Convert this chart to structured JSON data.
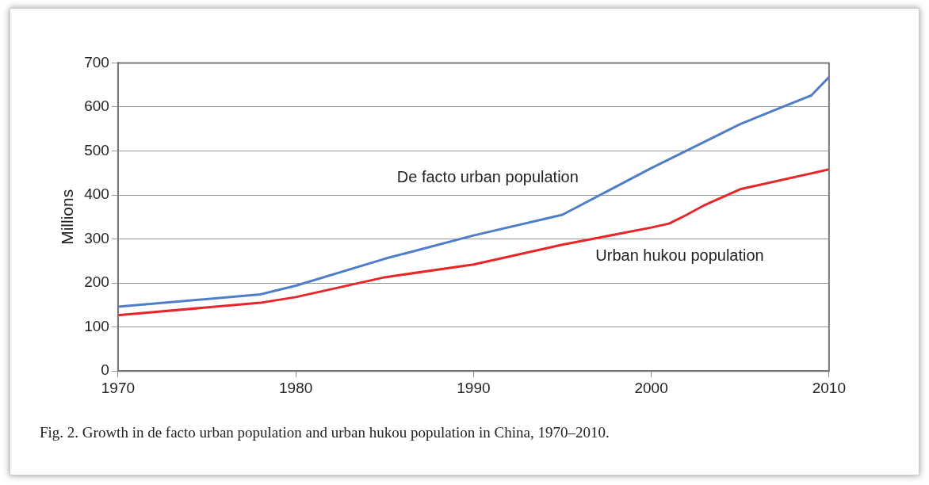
{
  "chart_data": {
    "type": "line",
    "ylabel": "Millions",
    "xlim": [
      1970,
      2010
    ],
    "xticks": [
      1970,
      1980,
      1990,
      2000,
      2010
    ],
    "ylim": [
      0,
      700
    ],
    "yticks": [
      0,
      100,
      200,
      300,
      400,
      500,
      600,
      700
    ],
    "grid": "y",
    "legend": false,
    "marker": "none",
    "line_style": "solid",
    "series": [
      {
        "name": "De facto urban population",
        "color": "#4f7ec8",
        "x": [
          1970,
          1978,
          1980,
          1985,
          1990,
          1995,
          2000,
          2003,
          2005,
          2007,
          2009,
          2010
        ],
        "values": [
          146,
          174,
          194,
          255,
          308,
          355,
          461,
          521,
          561,
          594,
          626,
          668
        ]
      },
      {
        "name": "Urban hukou population",
        "color": "#e8262a",
        "x": [
          1970,
          1978,
          1980,
          1985,
          1990,
          1995,
          2000,
          2001,
          2002,
          2003,
          2005,
          2010
        ],
        "values": [
          127,
          155,
          168,
          213,
          242,
          287,
          326,
          335,
          355,
          377,
          413,
          458
        ]
      }
    ],
    "annotations": [
      "Fig. 2. Growth in de facto urban population and urban hukou population in China, 1970–2010."
    ]
  }
}
